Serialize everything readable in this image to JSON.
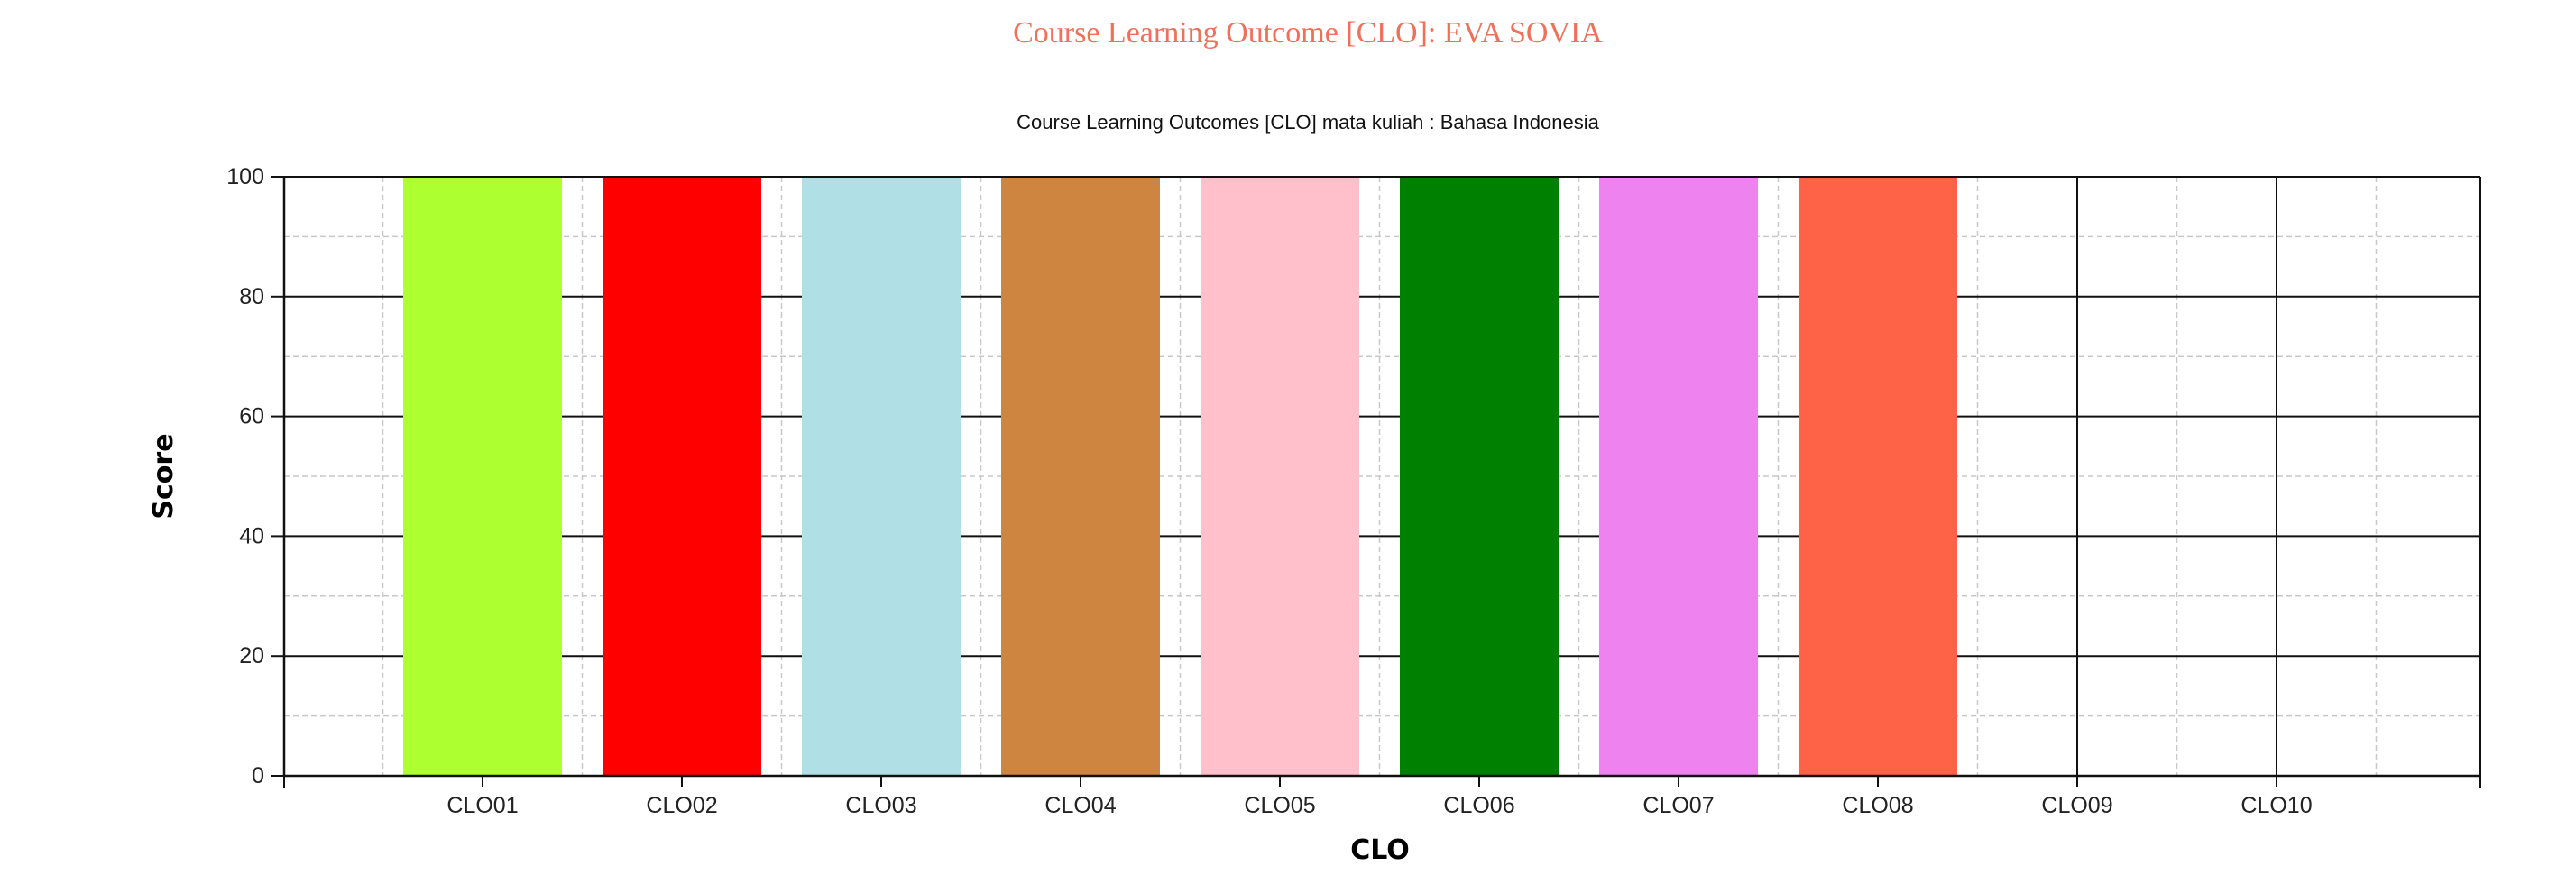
{
  "page": {
    "title": "Course Learning Outcome [CLO]: EVA SOVIA"
  },
  "chart_data": {
    "type": "bar",
    "title": "Course Learning Outcomes [CLO] mata kuliah : Bahasa Indonesia",
    "xlabel": "CLO",
    "ylabel": "Score",
    "ylim": [
      0,
      100
    ],
    "yticks": [
      0,
      20,
      40,
      60,
      80,
      100
    ],
    "grid": true,
    "categories": [
      "CLO01",
      "CLO02",
      "CLO03",
      "CLO04",
      "CLO05",
      "CLO06",
      "CLO07",
      "CLO08",
      "CLO09",
      "CLO10"
    ],
    "values": [
      100,
      100,
      100,
      100,
      100,
      100,
      100,
      100,
      0,
      0
    ],
    "colors": [
      "#adff2f",
      "#ff0000",
      "#b0e0e6",
      "#cd853f",
      "#ffc0cb",
      "#008000",
      "#ee82ee",
      "#ff6347",
      "#ffffff",
      "#ffffff"
    ]
  }
}
